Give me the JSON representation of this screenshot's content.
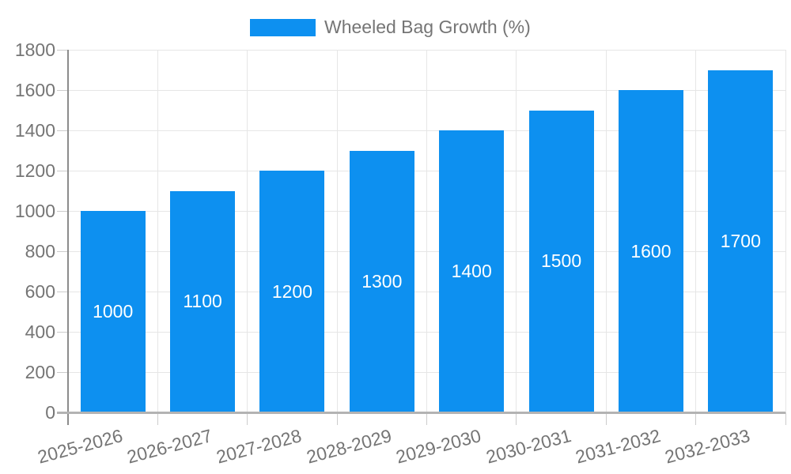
{
  "legend": {
    "label": "Wheeled Bag Growth (%)"
  },
  "chart_data": {
    "type": "bar",
    "title": "",
    "series_name": "Wheeled Bag Growth (%)",
    "categories": [
      "2025-2026",
      "2026-2027",
      "2027-2028",
      "2028-2029",
      "2029-2030",
      "2030-2031",
      "2031-2032",
      "2032-2033"
    ],
    "values": [
      1000,
      1100,
      1200,
      1300,
      1400,
      1500,
      1600,
      1700
    ],
    "xlabel": "",
    "ylabel": "",
    "ylim": [
      0,
      1800
    ],
    "yticks": [
      0,
      200,
      400,
      600,
      800,
      1000,
      1200,
      1400,
      1600,
      1800
    ],
    "grid": true,
    "legend_position": "top",
    "bar_color": "#0d90f0",
    "bar_label_color": "#ffffff",
    "axis_text_color": "#757575",
    "grid_color": "#e6e6e6",
    "tick_color": "#cccccc"
  }
}
